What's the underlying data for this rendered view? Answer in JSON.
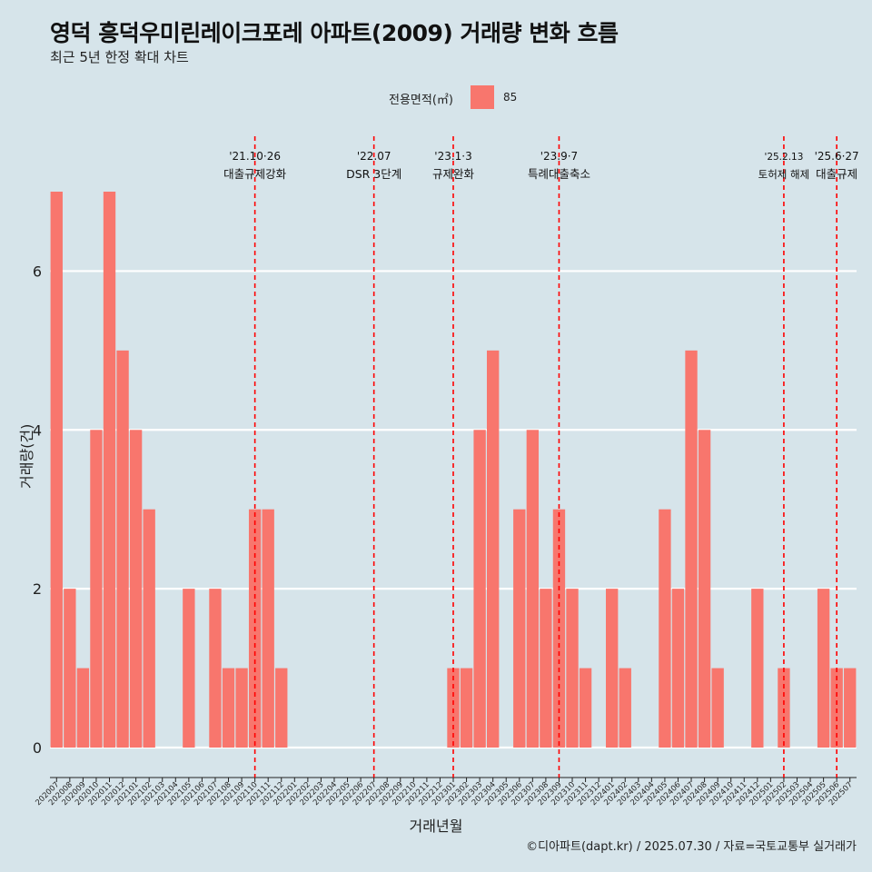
{
  "title": "영덕 흥덕우미린레이크포레 아파트(2009) 거래량 변화 흐름",
  "subtitle": "최근 5년 한정 확대 차트",
  "caption": "©디아파트(dapt.kr) / 2025.07.30 / 자료=국토교통부 실거래가",
  "legend": {
    "title": "전용면적(㎡)",
    "items": [
      {
        "label": "85",
        "color": "#f8766d"
      }
    ],
    "position": "top"
  },
  "colors": {
    "background": "#d6e4ea",
    "bar": "#f8766d",
    "gridline": "#ffffff",
    "event_line": "#ff0000"
  },
  "chart_data": {
    "type": "bar",
    "title": "영덕 흥덕우미린레이크포레 아파트(2009) 거래량 변화 흐름",
    "subtitle": "최근 5년 한정 확대 차트",
    "xlabel": "거래년월",
    "ylabel": "거래량(건)",
    "ylim": [
      0,
      7
    ],
    "yticks": [
      0,
      2,
      4,
      6
    ],
    "grid": "horizontal-major",
    "categories": [
      "202007",
      "202008",
      "202009",
      "202010",
      "202011",
      "202012",
      "202101",
      "202102",
      "202103",
      "202104",
      "202105",
      "202106",
      "202107",
      "202108",
      "202109",
      "202110",
      "202111",
      "202112",
      "202201",
      "202202",
      "202203",
      "202204",
      "202205",
      "202206",
      "202207",
      "202208",
      "202209",
      "202210",
      "202211",
      "202212",
      "202301",
      "202302",
      "202303",
      "202304",
      "202305",
      "202306",
      "202307",
      "202308",
      "202309",
      "202310",
      "202311",
      "202312",
      "202401",
      "202402",
      "202403",
      "202404",
      "202405",
      "202406",
      "202407",
      "202408",
      "202409",
      "202410",
      "202411",
      "202412",
      "202501",
      "202502",
      "202503",
      "202504",
      "202505",
      "202506",
      "202507"
    ],
    "series": [
      {
        "name": "85",
        "values": [
          7,
          2,
          1,
          4,
          7,
          5,
          4,
          3,
          0,
          0,
          2,
          0,
          2,
          1,
          1,
          3,
          3,
          1,
          0,
          0,
          0,
          0,
          0,
          0,
          0,
          0,
          0,
          0,
          0,
          0,
          1,
          1,
          4,
          5,
          0,
          3,
          4,
          2,
          3,
          2,
          1,
          0,
          2,
          1,
          0,
          0,
          3,
          2,
          5,
          4,
          1,
          0,
          0,
          2,
          0,
          1,
          0,
          0,
          2,
          1,
          1
        ]
      }
    ],
    "events": [
      {
        "date": "'21.10·26",
        "label": "대출규제강화",
        "category": "202110"
      },
      {
        "date": "'22.07",
        "label": "DSR 3단계",
        "category": "202207"
      },
      {
        "date": "'23.1·3",
        "label": "규제완화",
        "category": "202301"
      },
      {
        "date": "'23.9·7",
        "label": "특례대출축소",
        "category": "202309"
      },
      {
        "date": "'25.2.13",
        "label": "토허제 해제",
        "category": "202502"
      },
      {
        "date": "'25.6·27",
        "label": "대출규제",
        "category": "202506"
      }
    ]
  }
}
